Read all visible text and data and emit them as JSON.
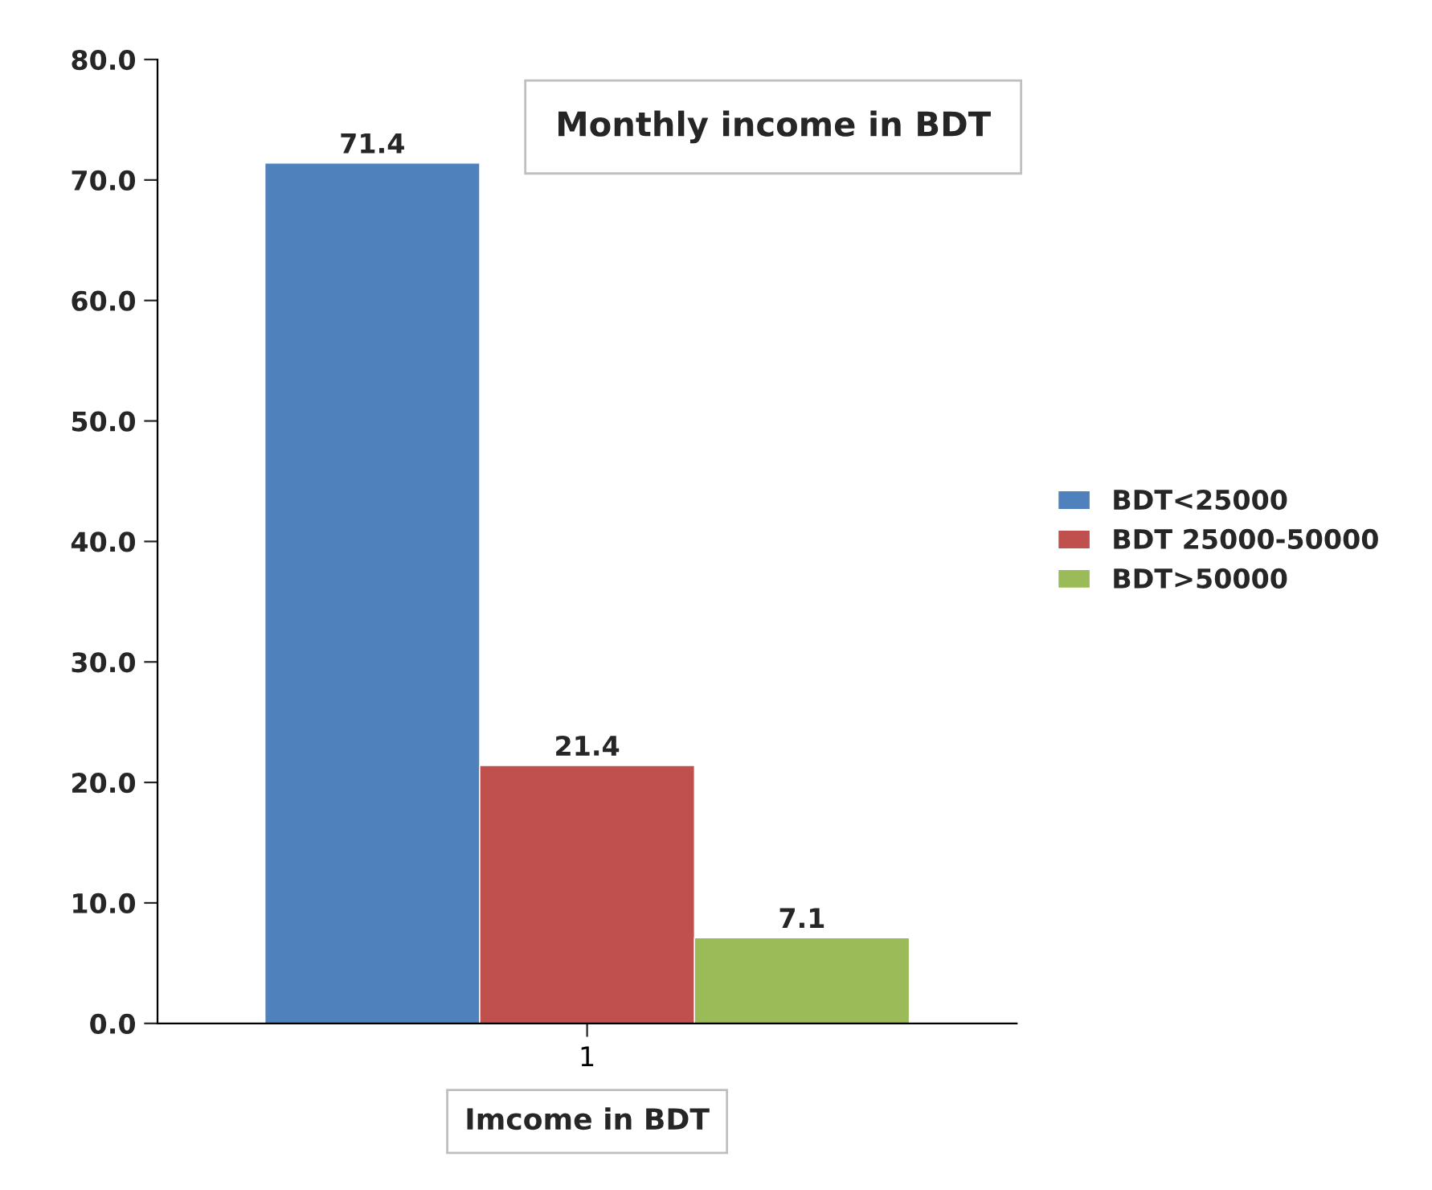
{
  "chart_data": {
    "type": "bar",
    "title": "Monthly income in BDT",
    "xlabel": "Imcome in BDT",
    "categories": [
      "1"
    ],
    "series": [
      {
        "name": "BDT<25000",
        "color": "#4f81bd",
        "values": [
          71.4
        ]
      },
      {
        "name": "BDT 25000-50000",
        "color": "#c0504d",
        "values": [
          21.4
        ]
      },
      {
        "name": "BDT>50000",
        "color": "#9bbb59",
        "values": [
          7.1
        ]
      }
    ],
    "ylim": [
      0,
      80
    ],
    "yticks": [
      {
        "value": 0,
        "label": "0.0"
      },
      {
        "value": 10,
        "label": "10.0"
      },
      {
        "value": 20,
        "label": "20.0"
      },
      {
        "value": 30,
        "label": "30.0"
      },
      {
        "value": 40,
        "label": "40.0"
      },
      {
        "value": 50,
        "label": "50.0"
      },
      {
        "value": 60,
        "label": "60.0"
      },
      {
        "value": 70,
        "label": "70.0"
      },
      {
        "value": 80,
        "label": "80.0"
      }
    ],
    "data_labels": true,
    "grid": false,
    "legend": "right"
  }
}
